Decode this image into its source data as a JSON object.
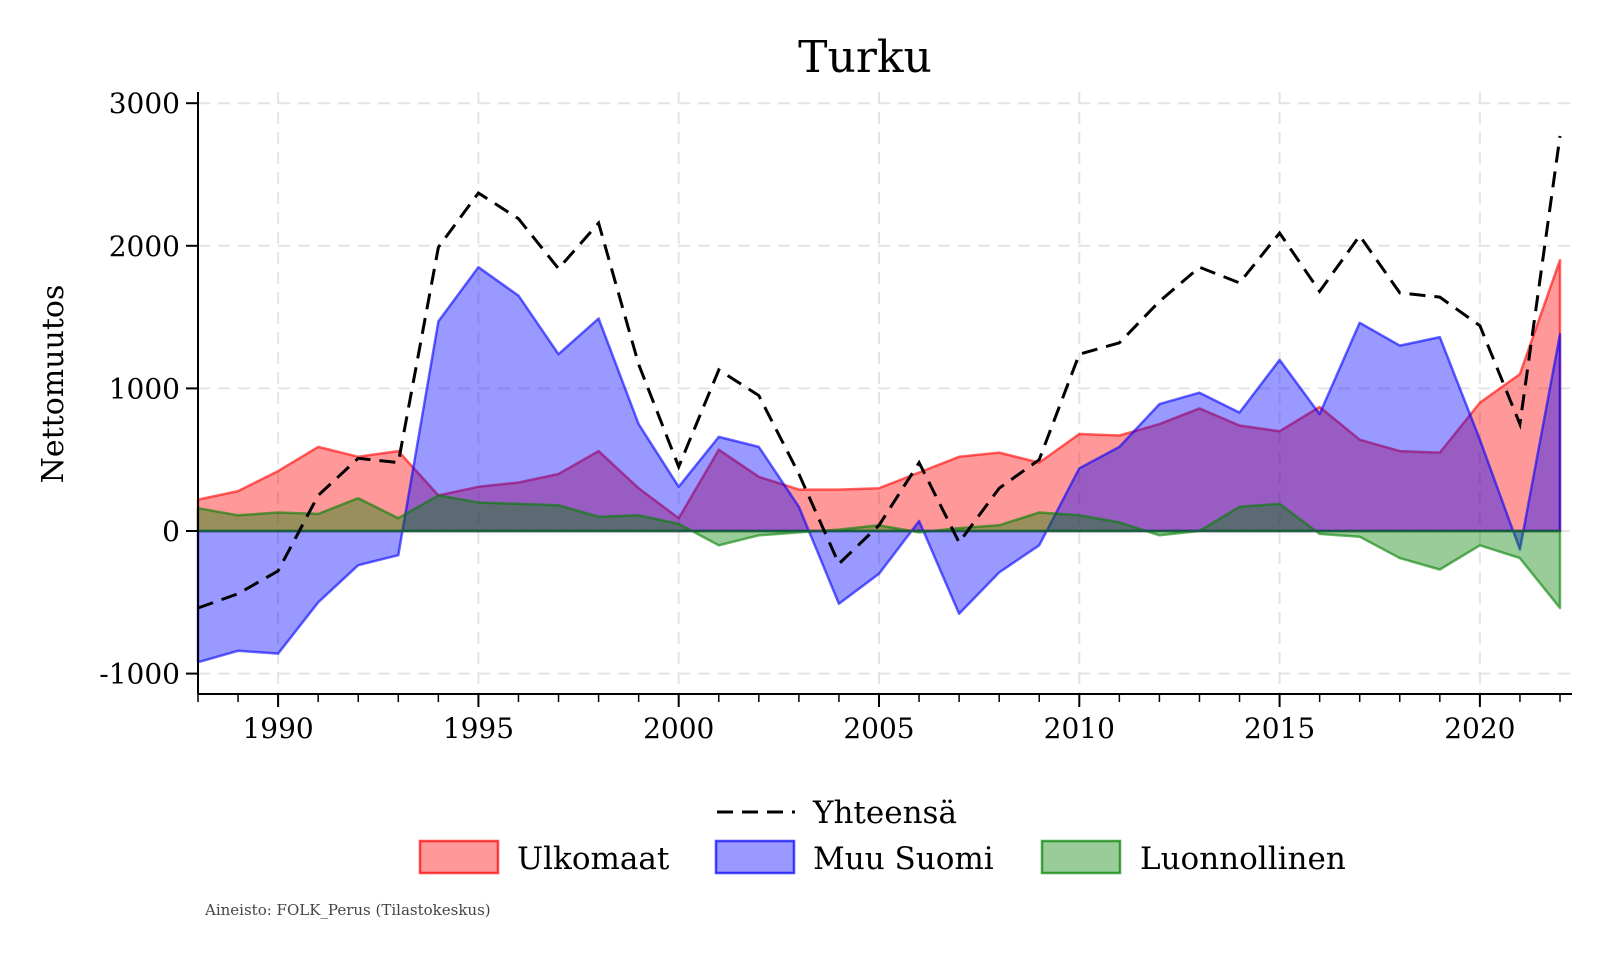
{
  "chart_data": {
    "type": "area",
    "title": "Turku",
    "xlabel": "",
    "ylabel": "Nettomuutos",
    "xlim": [
      1988,
      2022
    ],
    "ylim": [
      -1100,
      3000
    ],
    "grid": true,
    "x": [
      1988,
      1989,
      1990,
      1991,
      1992,
      1993,
      1994,
      1995,
      1996,
      1997,
      1998,
      1999,
      2000,
      2001,
      2002,
      2003,
      2004,
      2005,
      2006,
      2007,
      2008,
      2009,
      2010,
      2011,
      2012,
      2013,
      2014,
      2015,
      2016,
      2017,
      2018,
      2019,
      2020,
      2021,
      2022
    ],
    "xticks": [
      "1990",
      "1995",
      "2000",
      "2005",
      "2010",
      "2015",
      "2020"
    ],
    "yticks": [
      "-1000",
      "0",
      "1000",
      "2000",
      "3000"
    ],
    "series": [
      {
        "name": "Ulkomaat",
        "kind": "area",
        "color": "#ff0000",
        "values": [
          220,
          280,
          420,
          590,
          520,
          560,
          250,
          310,
          340,
          400,
          560,
          300,
          90,
          570,
          380,
          290,
          290,
          300,
          410,
          520,
          550,
          480,
          680,
          670,
          750,
          860,
          740,
          700,
          870,
          640,
          560,
          550,
          900,
          1100,
          1900
        ]
      },
      {
        "name": "Muu Suomi",
        "kind": "area",
        "color": "#0000ff",
        "values": [
          -920,
          -840,
          -860,
          -500,
          -240,
          -170,
          1470,
          1850,
          1650,
          1240,
          1490,
          750,
          310,
          660,
          590,
          170,
          -510,
          -300,
          70,
          -580,
          -290,
          -100,
          440,
          590,
          890,
          970,
          830,
          1200,
          820,
          1460,
          1300,
          1360,
          640,
          -130,
          1380
        ]
      },
      {
        "name": "Luonnollinen",
        "kind": "area",
        "color": "#008000",
        "values": [
          160,
          110,
          130,
          120,
          230,
          90,
          250,
          200,
          190,
          180,
          100,
          110,
          50,
          -100,
          -30,
          -10,
          10,
          40,
          -10,
          20,
          40,
          130,
          110,
          60,
          -30,
          0,
          170,
          190,
          -20,
          -40,
          -190,
          -270,
          -100,
          -190,
          -540
        ]
      },
      {
        "name": "Yhteensä",
        "kind": "line",
        "color": "#000000",
        "values": [
          -540,
          -440,
          -280,
          250,
          510,
          480,
          1990,
          2370,
          2190,
          1840,
          2160,
          1170,
          450,
          1130,
          950,
          400,
          -230,
          40,
          480,
          -80,
          300,
          500,
          1240,
          1320,
          1610,
          1850,
          1740,
          2090,
          1680,
          2070,
          1670,
          1640,
          1440,
          750,
          2770
        ]
      }
    ],
    "legend": {
      "position": "bottom",
      "order": [
        "Yhteensä",
        "Ulkomaat",
        "Muu Suomi",
        "Luonnollinen"
      ]
    },
    "source_note": "Aineisto: FOLK_Perus (Tilastokeskus)"
  }
}
